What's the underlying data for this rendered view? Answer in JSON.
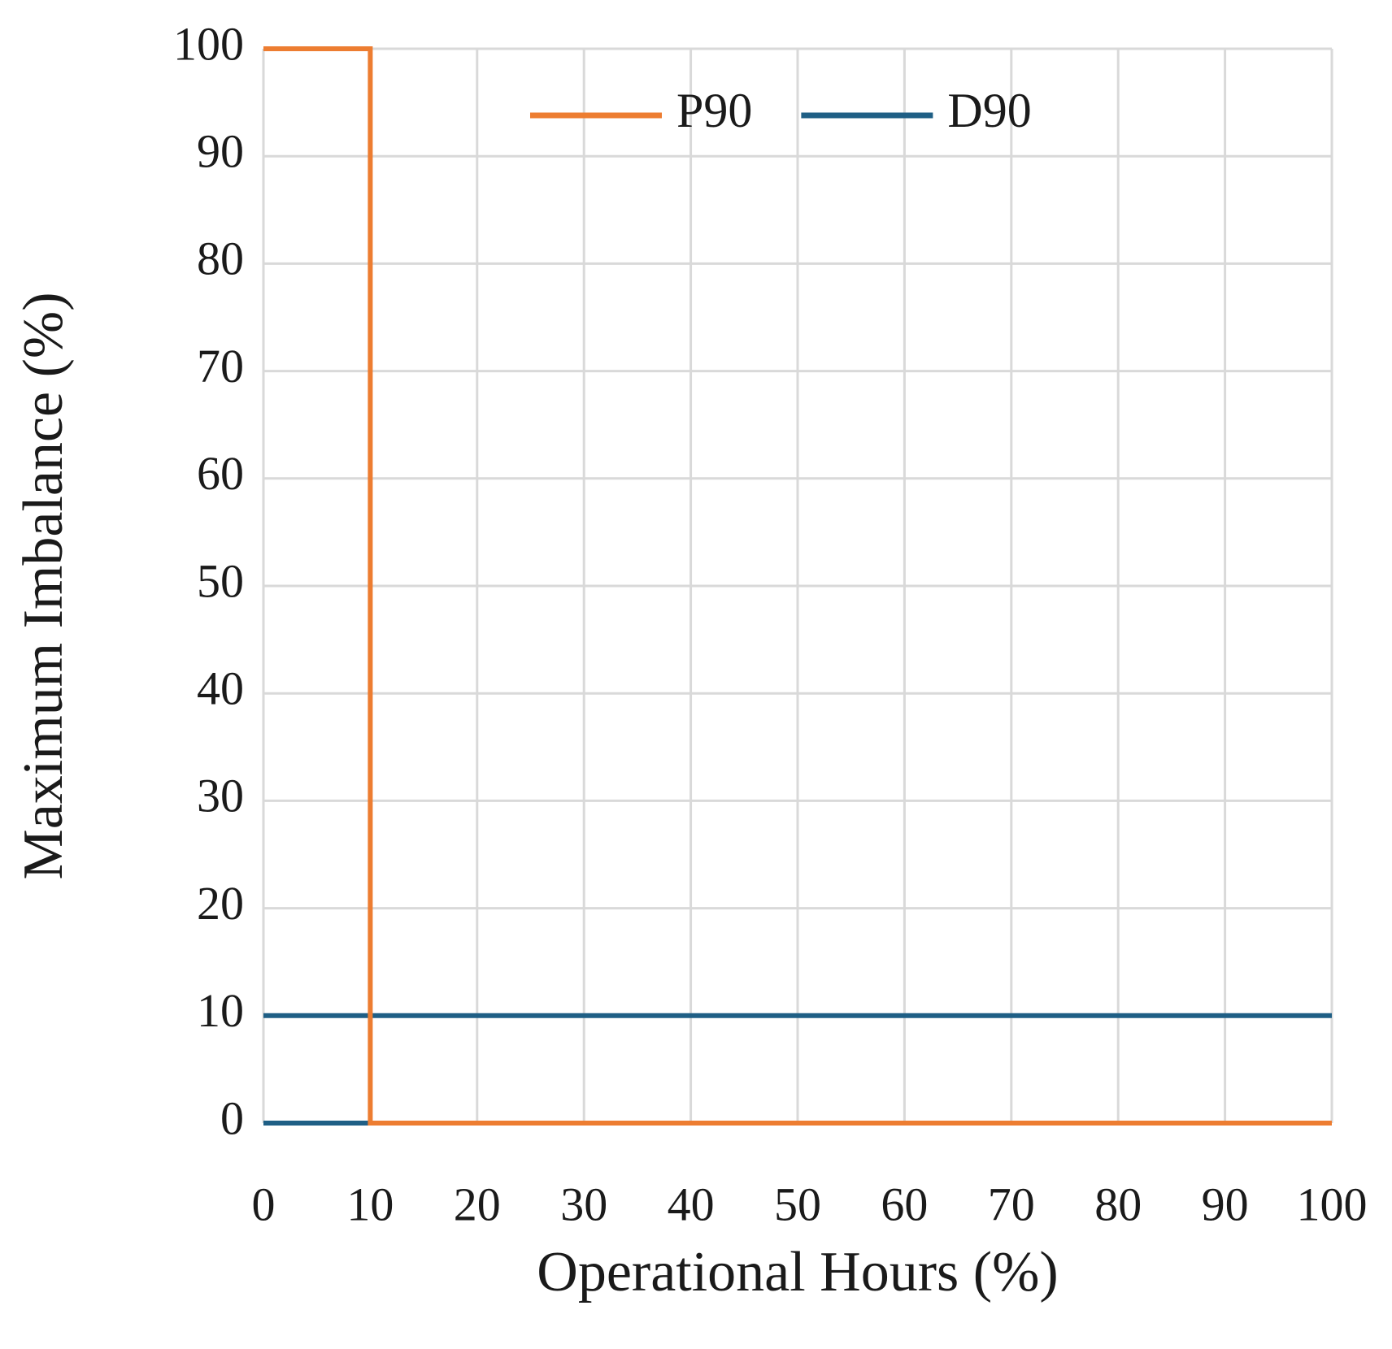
{
  "chart_data": {
    "type": "line",
    "x_label": "Operational Hours (%)",
    "y_label": "Maximum Imbalance (%)",
    "series": [
      {
        "name": "P90",
        "color": "#ed7d31",
        "x": [
          0,
          10,
          10,
          100
        ],
        "values": [
          100,
          100,
          0,
          0
        ]
      },
      {
        "name": "D90",
        "color": "#1f5f85",
        "x": [
          0,
          10,
          null,
          0,
          100
        ],
        "values": [
          0,
          0,
          null,
          10,
          10
        ]
      }
    ],
    "xlim": [
      0,
      100
    ],
    "xticks": [
      0,
      10,
      20,
      30,
      40,
      50,
      60,
      70,
      80,
      90,
      100
    ],
    "ylim": [
      0,
      100
    ],
    "yticks": [
      0,
      10,
      20,
      30,
      40,
      50,
      60,
      70,
      80,
      90,
      100
    ],
    "grid": true,
    "legend": "top"
  }
}
